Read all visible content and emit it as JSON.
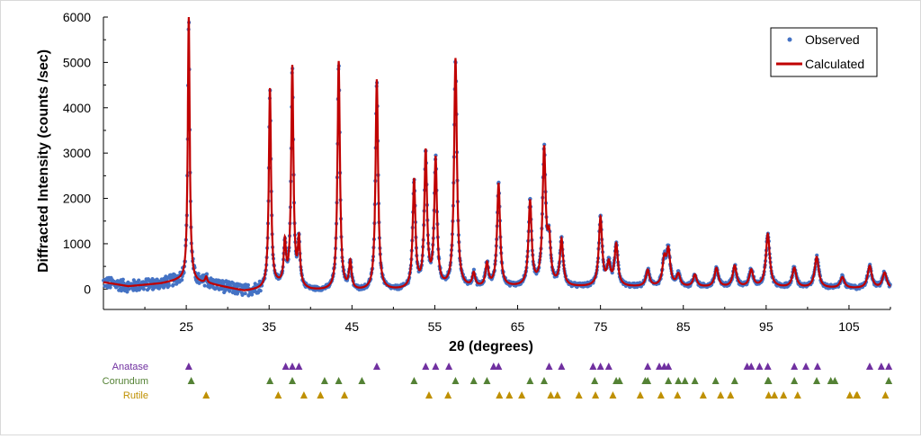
{
  "chart_data": {
    "type": "scatter",
    "xlabel": "2θ (degrees)",
    "ylabel": "Diffracted Intensity  (counts /sec)",
    "xlim": [
      15,
      110
    ],
    "ylim": [
      -450,
      6000
    ],
    "x_ticks": [
      "25",
      "35",
      "45",
      "55",
      "65",
      "75",
      "85",
      "95",
      "105"
    ],
    "x_tick_values": [
      25,
      35,
      45,
      55,
      65,
      75,
      85,
      95,
      105
    ],
    "y_ticks": [
      "0",
      "1000",
      "2000",
      "3000",
      "4000",
      "5000",
      "6000"
    ],
    "y_tick_values": [
      0,
      1000,
      2000,
      3000,
      4000,
      5000,
      6000
    ],
    "legend_position": "top-right",
    "series": [
      {
        "name": "Observed",
        "style": "points",
        "color": "#4472c4"
      },
      {
        "name": "Calculated",
        "style": "line",
        "color": "#c00000"
      }
    ],
    "baseline": [
      [
        15,
        150
      ],
      [
        18,
        60
      ],
      [
        22,
        120
      ],
      [
        24,
        180
      ],
      [
        28,
        100
      ],
      [
        32,
        -50
      ],
      [
        34,
        -20
      ],
      [
        36,
        60
      ],
      [
        40,
        -40
      ],
      [
        45,
        -60
      ],
      [
        55,
        -20
      ],
      [
        65,
        30
      ],
      [
        80,
        40
      ],
      [
        95,
        30
      ],
      [
        110,
        0
      ]
    ],
    "peaks": [
      {
        "x": 25.3,
        "y": 6000
      },
      {
        "x": 27.4,
        "y": 250
      },
      {
        "x": 35.1,
        "y": 4400
      },
      {
        "x": 36.9,
        "y": 950
      },
      {
        "x": 37.8,
        "y": 4850
      },
      {
        "x": 38.6,
        "y": 1000
      },
      {
        "x": 43.4,
        "y": 5000
      },
      {
        "x": 44.8,
        "y": 550
      },
      {
        "x": 48.0,
        "y": 4600
      },
      {
        "x": 52.5,
        "y": 2350
      },
      {
        "x": 53.9,
        "y": 2950
      },
      {
        "x": 55.1,
        "y": 2800
      },
      {
        "x": 57.5,
        "y": 5050
      },
      {
        "x": 59.7,
        "y": 300
      },
      {
        "x": 61.3,
        "y": 520
      },
      {
        "x": 62.7,
        "y": 2300
      },
      {
        "x": 66.5,
        "y": 1900
      },
      {
        "x": 68.2,
        "y": 3000
      },
      {
        "x": 68.8,
        "y": 950
      },
      {
        "x": 70.3,
        "y": 1050
      },
      {
        "x": 75.0,
        "y": 1550
      },
      {
        "x": 76.0,
        "y": 500
      },
      {
        "x": 76.9,
        "y": 950
      },
      {
        "x": 80.7,
        "y": 400
      },
      {
        "x": 82.7,
        "y": 600
      },
      {
        "x": 83.2,
        "y": 800
      },
      {
        "x": 84.4,
        "y": 300
      },
      {
        "x": 86.4,
        "y": 300
      },
      {
        "x": 89.0,
        "y": 450
      },
      {
        "x": 91.2,
        "y": 500
      },
      {
        "x": 93.2,
        "y": 400
      },
      {
        "x": 95.2,
        "y": 1200
      },
      {
        "x": 98.4,
        "y": 450
      },
      {
        "x": 101.1,
        "y": 700
      },
      {
        "x": 104.2,
        "y": 250
      },
      {
        "x": 107.5,
        "y": 500
      },
      {
        "x": 109.3,
        "y": 350
      }
    ]
  },
  "legend": {
    "observed": "Observed",
    "calculated": "Calculated"
  },
  "phases": [
    {
      "name": "Anatase",
      "color": "#7030a0",
      "positions": [
        25.3,
        37.0,
        37.8,
        38.6,
        48.0,
        53.9,
        55.1,
        56.7,
        62.1,
        62.7,
        68.8,
        70.3,
        74.1,
        75.0,
        76.0,
        80.7,
        82.1,
        82.7,
        83.2,
        92.7,
        93.2,
        94.2,
        95.2,
        98.4,
        99.8,
        101.2,
        107.5,
        108.9,
        109.8
      ]
    },
    {
      "name": "Corundum",
      "color": "#548235",
      "positions": [
        25.6,
        35.1,
        37.8,
        41.7,
        43.4,
        46.2,
        52.5,
        57.5,
        59.7,
        61.3,
        66.5,
        68.2,
        74.3,
        76.9,
        77.3,
        80.4,
        80.7,
        83.2,
        84.4,
        85.2,
        86.4,
        88.9,
        91.2,
        95.2,
        95.3,
        98.4,
        101.1,
        102.8,
        103.3,
        109.8
      ]
    },
    {
      "name": "Rutile",
      "color": "#bf9000",
      "positions": [
        27.4,
        36.1,
        39.2,
        41.2,
        44.1,
        54.3,
        56.6,
        62.8,
        64.0,
        65.5,
        69.0,
        69.8,
        72.4,
        74.4,
        76.5,
        79.8,
        82.3,
        84.3,
        87.4,
        89.5,
        90.7,
        95.3,
        96.0,
        97.1,
        98.8,
        105.1,
        105.9,
        106.0,
        109.4
      ]
    }
  ]
}
